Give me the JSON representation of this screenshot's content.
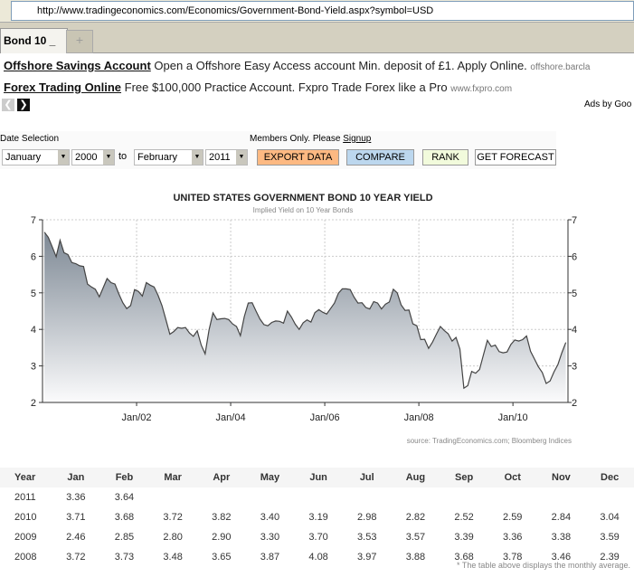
{
  "browser": {
    "url": "http://www.tradingeconomics.com/Economics/Government-Bond-Yield.aspx?symbol=USD",
    "tab": "Bond 10 _",
    "new_tab": "+"
  },
  "ads": [
    {
      "title": "Offshore Savings Account",
      "text": "Open a Offshore Easy Access account Min. deposit of £1. Apply Online.",
      "domain": "offshore.barcla"
    },
    {
      "title": "Forex Trading Online",
      "text": "Free $100,000 Practice Account. Fxpro Trade Forex like a Pro",
      "domain": "www.fxpro.com"
    }
  ],
  "ads_by": "Ads by Goo",
  "controls": {
    "date_label": "Date Selection",
    "members": "Members Only. Please",
    "signup": "Signup",
    "from_month": "January",
    "from_year": "2000",
    "to": "to",
    "to_month": "February",
    "to_year": "2011",
    "export": "EXPORT DATA",
    "compare": "COMPARE",
    "rank": "RANK",
    "forecast": "GET FORECAST"
  },
  "colors": {
    "export": "#fdb982",
    "compare": "#bcd7ee",
    "rank": "#f2fbdc",
    "line": "#444444"
  },
  "chart_data": {
    "type": "area",
    "title": "UNITED STATES GOVERNMENT BOND 10 YEAR YIELD",
    "subtitle": "Implied Yield on 10 Year Bonds",
    "source": "source: TradingEconomics.com; Bloomberg Indices",
    "ylim": [
      2,
      7
    ],
    "yticks": [
      "2",
      "3",
      "4",
      "5",
      "6",
      "7"
    ],
    "xticks": [
      "Jan/02",
      "Jan/04",
      "Jan/06",
      "Jan/08",
      "Jan/10"
    ],
    "xtick_years": [
      2002,
      2004,
      2006,
      2008,
      2010
    ],
    "start": "2000-01",
    "xlim_years": [
      2000,
      2011.17
    ],
    "grid": true,
    "monthly": [
      6.66,
      6.52,
      6.26,
      5.99,
      6.44,
      6.1,
      6.05,
      5.83,
      5.8,
      5.74,
      5.72,
      5.24,
      5.16,
      5.1,
      4.89,
      5.14,
      5.39,
      5.28,
      5.24,
      4.97,
      4.73,
      4.57,
      4.65,
      5.09,
      5.04,
      4.91,
      5.28,
      5.21,
      5.16,
      4.93,
      4.65,
      4.26,
      3.87,
      3.94,
      4.05,
      4.03,
      4.05,
      3.9,
      3.81,
      3.96,
      3.57,
      3.33,
      3.98,
      4.45,
      4.27,
      4.29,
      4.3,
      4.27,
      4.15,
      4.08,
      3.83,
      4.35,
      4.72,
      4.73,
      4.5,
      4.28,
      4.13,
      4.1,
      4.19,
      4.23,
      4.22,
      4.17,
      4.5,
      4.34,
      4.14,
      4.0,
      4.18,
      4.26,
      4.2,
      4.46,
      4.54,
      4.47,
      4.42,
      4.57,
      4.72,
      4.99,
      5.11,
      5.11,
      5.09,
      4.88,
      4.72,
      4.73,
      4.6,
      4.56,
      4.76,
      4.72,
      4.56,
      4.69,
      4.75,
      5.1,
      5.0,
      4.67,
      4.52,
      4.53,
      4.15,
      4.1,
      3.72,
      3.73,
      3.48,
      3.65,
      3.87,
      4.08,
      3.97,
      3.88,
      3.68,
      3.78,
      3.46,
      2.39,
      2.46,
      2.85,
      2.8,
      2.9,
      3.3,
      3.7,
      3.53,
      3.57,
      3.39,
      3.36,
      3.38,
      3.59,
      3.71,
      3.68,
      3.72,
      3.82,
      3.4,
      3.19,
      2.98,
      2.82,
      2.52,
      2.59,
      2.84,
      3.04,
      3.36,
      3.64
    ]
  },
  "table": {
    "headers": [
      "Year",
      "Jan",
      "Feb",
      "Mar",
      "Apr",
      "May",
      "Jun",
      "Jul",
      "Aug",
      "Sep",
      "Oct",
      "Nov",
      "Dec"
    ],
    "rows": [
      [
        "2011",
        "3.36",
        "3.64",
        "",
        "",
        "",
        "",
        "",
        "",
        "",
        "",
        "",
        ""
      ],
      [
        "2010",
        "3.71",
        "3.68",
        "3.72",
        "3.82",
        "3.40",
        "3.19",
        "2.98",
        "2.82",
        "2.52",
        "2.59",
        "2.84",
        "3.04"
      ],
      [
        "2009",
        "2.46",
        "2.85",
        "2.80",
        "2.90",
        "3.30",
        "3.70",
        "3.53",
        "3.57",
        "3.39",
        "3.36",
        "3.38",
        "3.59"
      ],
      [
        "2008",
        "3.72",
        "3.73",
        "3.48",
        "3.65",
        "3.87",
        "4.08",
        "3.97",
        "3.88",
        "3.68",
        "3.78",
        "3.46",
        "2.39"
      ]
    ],
    "note": "* The table above displays the monthly average."
  }
}
